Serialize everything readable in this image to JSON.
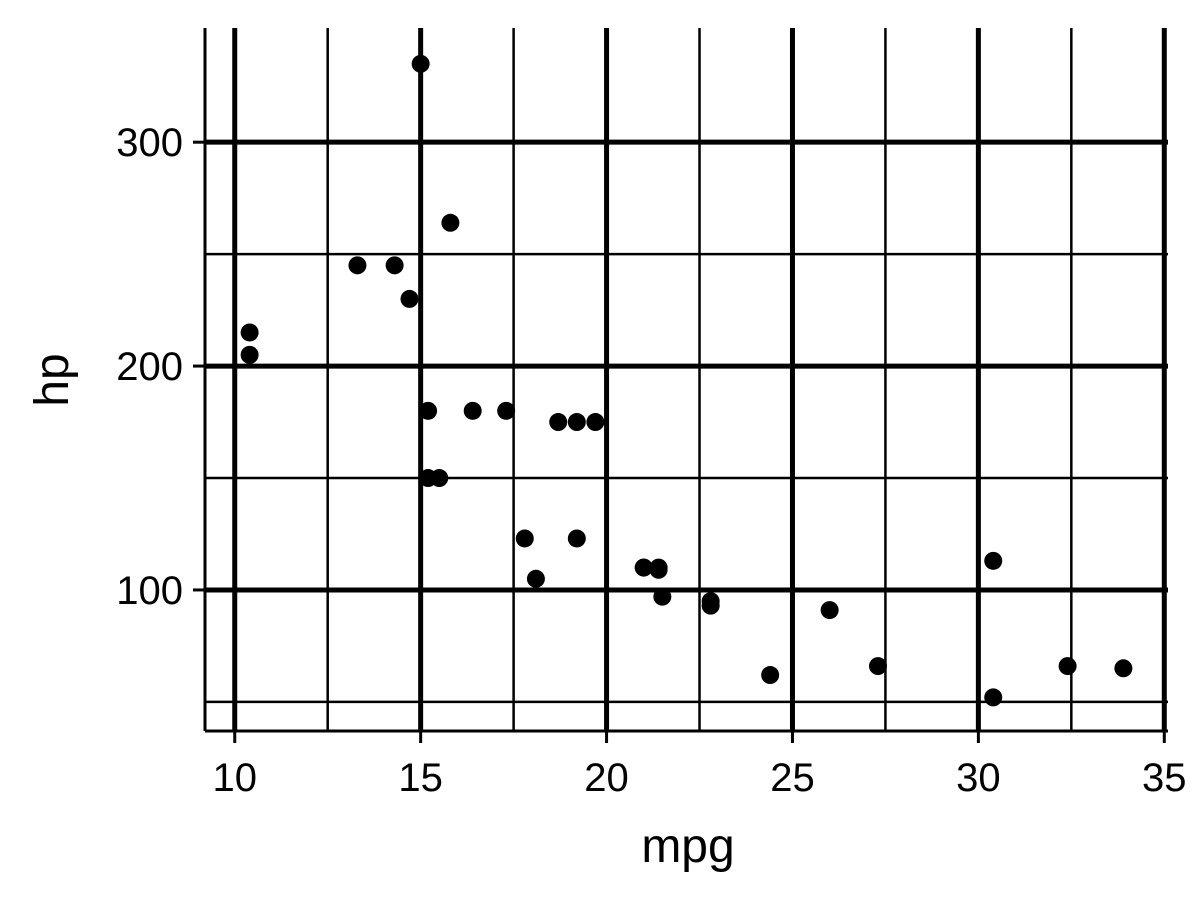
{
  "chart_data": {
    "type": "scatter",
    "xlabel": "mpg",
    "ylabel": "hp",
    "xlim": [
      9.2,
      35.1
    ],
    "ylim": [
      37,
      351
    ],
    "x_major_ticks": [
      10,
      15,
      20,
      25,
      30,
      35
    ],
    "x_minor_ticks": [
      12.5,
      17.5,
      22.5,
      27.5,
      32.5
    ],
    "y_major_ticks": [
      100,
      200,
      300
    ],
    "y_minor_ticks": [
      50,
      150,
      250
    ],
    "x_tick_labels": [
      "10",
      "15",
      "20",
      "25",
      "30",
      "35"
    ],
    "y_tick_labels": [
      "100",
      "200",
      "300"
    ],
    "grid": true,
    "point_color": "#000000",
    "grid_color": "#000000",
    "points": [
      {
        "x": 21.0,
        "y": 110
      },
      {
        "x": 21.0,
        "y": 110
      },
      {
        "x": 22.8,
        "y": 93
      },
      {
        "x": 21.4,
        "y": 110
      },
      {
        "x": 18.7,
        "y": 175
      },
      {
        "x": 18.1,
        "y": 105
      },
      {
        "x": 14.3,
        "y": 245
      },
      {
        "x": 24.4,
        "y": 62
      },
      {
        "x": 22.8,
        "y": 95
      },
      {
        "x": 19.2,
        "y": 123
      },
      {
        "x": 17.8,
        "y": 123
      },
      {
        "x": 16.4,
        "y": 180
      },
      {
        "x": 17.3,
        "y": 180
      },
      {
        "x": 15.2,
        "y": 180
      },
      {
        "x": 10.4,
        "y": 205
      },
      {
        "x": 10.4,
        "y": 215
      },
      {
        "x": 14.7,
        "y": 230
      },
      {
        "x": 32.4,
        "y": 66
      },
      {
        "x": 30.4,
        "y": 52
      },
      {
        "x": 33.9,
        "y": 65
      },
      {
        "x": 21.5,
        "y": 97
      },
      {
        "x": 15.5,
        "y": 150
      },
      {
        "x": 15.2,
        "y": 150
      },
      {
        "x": 13.3,
        "y": 245
      },
      {
        "x": 19.2,
        "y": 175
      },
      {
        "x": 27.3,
        "y": 66
      },
      {
        "x": 26.0,
        "y": 91
      },
      {
        "x": 30.4,
        "y": 113
      },
      {
        "x": 15.8,
        "y": 264
      },
      {
        "x": 19.7,
        "y": 175
      },
      {
        "x": 15.0,
        "y": 335
      },
      {
        "x": 21.4,
        "y": 109
      }
    ]
  }
}
